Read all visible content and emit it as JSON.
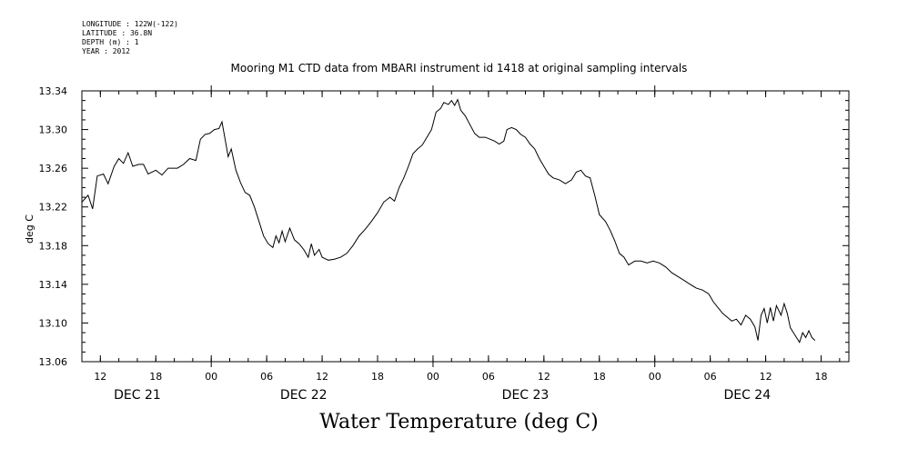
{
  "meta": {
    "longitude": "LONGITUDE : 122W(-122)",
    "latitude": "LATITUDE : 36.8N",
    "depth": "DEPTH (m) : 1",
    "year": "YEAR : 2012"
  },
  "chart_data": {
    "type": "line",
    "title": "Mooring M1 CTD data from MBARI instrument id 1418 at original sampling intervals",
    "xlabel": "Water Temperature (deg C)",
    "ylabel": "deg C",
    "xlim": [
      "2012-12-21T10:00",
      "2012-12-24T21:00"
    ],
    "ylim": [
      13.06,
      13.34
    ],
    "y_ticks": [
      "13.06",
      "13.10",
      "13.14",
      "13.18",
      "13.22",
      "13.26",
      "13.30",
      "13.34"
    ],
    "x_ticks": [
      {
        "time": "2012-12-21T12:00",
        "label": "12"
      },
      {
        "time": "2012-12-21T18:00",
        "label": "18"
      },
      {
        "time": "2012-12-22T00:00",
        "label": "00"
      },
      {
        "time": "2012-12-22T06:00",
        "label": "06"
      },
      {
        "time": "2012-12-22T12:00",
        "label": "12"
      },
      {
        "time": "2012-12-22T18:00",
        "label": "18"
      },
      {
        "time": "2012-12-23T00:00",
        "label": "00"
      },
      {
        "time": "2012-12-23T06:00",
        "label": "06"
      },
      {
        "time": "2012-12-23T12:00",
        "label": "12"
      },
      {
        "time": "2012-12-23T18:00",
        "label": "18"
      },
      {
        "time": "2012-12-24T00:00",
        "label": "00"
      },
      {
        "time": "2012-12-24T06:00",
        "label": "06"
      },
      {
        "time": "2012-12-24T12:00",
        "label": "12"
      },
      {
        "time": "2012-12-24T18:00",
        "label": "18"
      }
    ],
    "day_labels": [
      {
        "time": "2012-12-21T16:00",
        "label": "DEC 21"
      },
      {
        "time": "2012-12-22T10:00",
        "label": "DEC 22"
      },
      {
        "time": "2012-12-23T10:00",
        "label": "DEC 23"
      },
      {
        "time": "2012-12-24T10:00",
        "label": "DEC 24"
      }
    ],
    "series": [
      {
        "points": [
          [
            "2012-12-21T10:00",
            13.225
          ],
          [
            "2012-12-21T10:40",
            13.232
          ],
          [
            "2012-12-21T11:10",
            13.218
          ],
          [
            "2012-12-21T11:40",
            13.252
          ],
          [
            "2012-12-21T12:20",
            13.254
          ],
          [
            "2012-12-21T12:50",
            13.244
          ],
          [
            "2012-12-21T13:30",
            13.262
          ],
          [
            "2012-12-21T14:00",
            13.27
          ],
          [
            "2012-12-21T14:30",
            13.265
          ],
          [
            "2012-12-21T15:00",
            13.276
          ],
          [
            "2012-12-21T15:30",
            13.262
          ],
          [
            "2012-12-21T16:10",
            13.264
          ],
          [
            "2012-12-21T16:40",
            13.264
          ],
          [
            "2012-12-21T17:10",
            13.254
          ],
          [
            "2012-12-21T18:00",
            13.258
          ],
          [
            "2012-12-21T18:40",
            13.253
          ],
          [
            "2012-12-21T19:20",
            13.26
          ],
          [
            "2012-12-21T20:20",
            13.26
          ],
          [
            "2012-12-21T21:00",
            13.264
          ],
          [
            "2012-12-21T21:40",
            13.27
          ],
          [
            "2012-12-21T22:20",
            13.268
          ],
          [
            "2012-12-21T22:50",
            13.29
          ],
          [
            "2012-12-21T23:20",
            13.295
          ],
          [
            "2012-12-21T23:50",
            13.296
          ],
          [
            "2012-12-22T00:20",
            13.3
          ],
          [
            "2012-12-22T00:50",
            13.301
          ],
          [
            "2012-12-22T01:10",
            13.308
          ],
          [
            "2012-12-22T01:30",
            13.29
          ],
          [
            "2012-12-22T01:50",
            13.272
          ],
          [
            "2012-12-22T02:10",
            13.28
          ],
          [
            "2012-12-22T02:40",
            13.258
          ],
          [
            "2012-12-22T03:10",
            13.245
          ],
          [
            "2012-12-22T03:40",
            13.235
          ],
          [
            "2012-12-22T04:10",
            13.232
          ],
          [
            "2012-12-22T04:40",
            13.22
          ],
          [
            "2012-12-22T05:10",
            13.205
          ],
          [
            "2012-12-22T05:40",
            13.19
          ],
          [
            "2012-12-22T06:10",
            13.182
          ],
          [
            "2012-12-22T06:40",
            13.178
          ],
          [
            "2012-12-22T07:00",
            13.19
          ],
          [
            "2012-12-22T07:20",
            13.183
          ],
          [
            "2012-12-22T07:40",
            13.195
          ],
          [
            "2012-12-22T08:00",
            13.184
          ],
          [
            "2012-12-22T08:30",
            13.198
          ],
          [
            "2012-12-22T09:00",
            13.186
          ],
          [
            "2012-12-22T09:30",
            13.182
          ],
          [
            "2012-12-22T10:00",
            13.176
          ],
          [
            "2012-12-22T10:30",
            13.168
          ],
          [
            "2012-12-22T10:50",
            13.182
          ],
          [
            "2012-12-22T11:10",
            13.17
          ],
          [
            "2012-12-22T11:40",
            13.176
          ],
          [
            "2012-12-22T12:00",
            13.168
          ],
          [
            "2012-12-22T12:40",
            13.165
          ],
          [
            "2012-12-22T13:20",
            13.166
          ],
          [
            "2012-12-22T14:00",
            13.168
          ],
          [
            "2012-12-22T14:40",
            13.172
          ],
          [
            "2012-12-22T15:20",
            13.18
          ],
          [
            "2012-12-22T16:00",
            13.19
          ],
          [
            "2012-12-22T16:40",
            13.197
          ],
          [
            "2012-12-22T17:20",
            13.205
          ],
          [
            "2012-12-22T18:00",
            13.214
          ],
          [
            "2012-12-22T18:40",
            13.225
          ],
          [
            "2012-12-22T19:20",
            13.23
          ],
          [
            "2012-12-22T19:50",
            13.226
          ],
          [
            "2012-12-22T20:20",
            13.24
          ],
          [
            "2012-12-22T20:50",
            13.25
          ],
          [
            "2012-12-22T21:20",
            13.262
          ],
          [
            "2012-12-22T21:50",
            13.275
          ],
          [
            "2012-12-22T22:20",
            13.28
          ],
          [
            "2012-12-22T22:50",
            13.284
          ],
          [
            "2012-12-22T23:20",
            13.292
          ],
          [
            "2012-12-22T23:50",
            13.3
          ],
          [
            "2012-12-23T00:20",
            13.318
          ],
          [
            "2012-12-23T00:50",
            13.322
          ],
          [
            "2012-12-23T01:10",
            13.328
          ],
          [
            "2012-12-23T01:40",
            13.326
          ],
          [
            "2012-12-23T02:00",
            13.33
          ],
          [
            "2012-12-23T02:20",
            13.325
          ],
          [
            "2012-12-23T02:40",
            13.331
          ],
          [
            "2012-12-23T03:00",
            13.32
          ],
          [
            "2012-12-23T03:30",
            13.314
          ],
          [
            "2012-12-23T04:00",
            13.305
          ],
          [
            "2012-12-23T04:30",
            13.296
          ],
          [
            "2012-12-23T05:00",
            13.292
          ],
          [
            "2012-12-23T05:40",
            13.292
          ],
          [
            "2012-12-23T06:10",
            13.29
          ],
          [
            "2012-12-23T06:40",
            13.288
          ],
          [
            "2012-12-23T07:10",
            13.285
          ],
          [
            "2012-12-23T07:40",
            13.288
          ],
          [
            "2012-12-23T08:00",
            13.3
          ],
          [
            "2012-12-23T08:30",
            13.302
          ],
          [
            "2012-12-23T09:00",
            13.3
          ],
          [
            "2012-12-23T09:30",
            13.295
          ],
          [
            "2012-12-23T10:00",
            13.292
          ],
          [
            "2012-12-23T10:30",
            13.285
          ],
          [
            "2012-12-23T11:00",
            13.28
          ],
          [
            "2012-12-23T11:30",
            13.27
          ],
          [
            "2012-12-23T12:00",
            13.262
          ],
          [
            "2012-12-23T12:30",
            13.254
          ],
          [
            "2012-12-23T13:00",
            13.25
          ],
          [
            "2012-12-23T13:40",
            13.248
          ],
          [
            "2012-12-23T14:20",
            13.244
          ],
          [
            "2012-12-23T15:00",
            13.248
          ],
          [
            "2012-12-23T15:30",
            13.256
          ],
          [
            "2012-12-23T16:00",
            13.258
          ],
          [
            "2012-12-23T16:30",
            13.252
          ],
          [
            "2012-12-23T17:00",
            13.25
          ],
          [
            "2012-12-23T17:30",
            13.232
          ],
          [
            "2012-12-23T18:00",
            13.212
          ],
          [
            "2012-12-23T18:40",
            13.205
          ],
          [
            "2012-12-23T19:10",
            13.196
          ],
          [
            "2012-12-23T19:40",
            13.185
          ],
          [
            "2012-12-23T20:10",
            13.172
          ],
          [
            "2012-12-23T20:40",
            13.168
          ],
          [
            "2012-12-23T21:10",
            13.16
          ],
          [
            "2012-12-23T21:50",
            13.164
          ],
          [
            "2012-12-23T22:30",
            13.164
          ],
          [
            "2012-12-23T23:10",
            13.162
          ],
          [
            "2012-12-23T23:50",
            13.164
          ],
          [
            "2012-12-24T00:30",
            13.162
          ],
          [
            "2012-12-24T01:10",
            13.158
          ],
          [
            "2012-12-24T01:50",
            13.152
          ],
          [
            "2012-12-24T02:30",
            13.148
          ],
          [
            "2012-12-24T03:10",
            13.144
          ],
          [
            "2012-12-24T03:50",
            13.14
          ],
          [
            "2012-12-24T04:30",
            13.136
          ],
          [
            "2012-12-24T05:10",
            13.134
          ],
          [
            "2012-12-24T05:50",
            13.13
          ],
          [
            "2012-12-24T06:20",
            13.122
          ],
          [
            "2012-12-24T06:50",
            13.116
          ],
          [
            "2012-12-24T07:20",
            13.11
          ],
          [
            "2012-12-24T07:50",
            13.106
          ],
          [
            "2012-12-24T08:20",
            13.102
          ],
          [
            "2012-12-24T08:50",
            13.104
          ],
          [
            "2012-12-24T09:20",
            13.098
          ],
          [
            "2012-12-24T09:50",
            13.108
          ],
          [
            "2012-12-24T10:20",
            13.104
          ],
          [
            "2012-12-24T10:50",
            13.096
          ],
          [
            "2012-12-24T11:10",
            13.082
          ],
          [
            "2012-12-24T11:30",
            13.108
          ],
          [
            "2012-12-24T11:50",
            13.115
          ],
          [
            "2012-12-24T12:10",
            13.1
          ],
          [
            "2012-12-24T12:30",
            13.116
          ],
          [
            "2012-12-24T12:50",
            13.102
          ],
          [
            "2012-12-24T13:10",
            13.118
          ],
          [
            "2012-12-24T13:40",
            13.108
          ],
          [
            "2012-12-24T14:00",
            13.12
          ],
          [
            "2012-12-24T14:20",
            13.11
          ],
          [
            "2012-12-24T14:40",
            13.095
          ],
          [
            "2012-12-24T15:00",
            13.09
          ],
          [
            "2012-12-24T15:20",
            13.085
          ],
          [
            "2012-12-24T15:40",
            13.08
          ],
          [
            "2012-12-24T16:00",
            13.09
          ],
          [
            "2012-12-24T16:20",
            13.085
          ],
          [
            "2012-12-24T16:40",
            13.092
          ],
          [
            "2012-12-24T17:00",
            13.085
          ],
          [
            "2012-12-24T17:20",
            13.082
          ]
        ]
      }
    ]
  }
}
